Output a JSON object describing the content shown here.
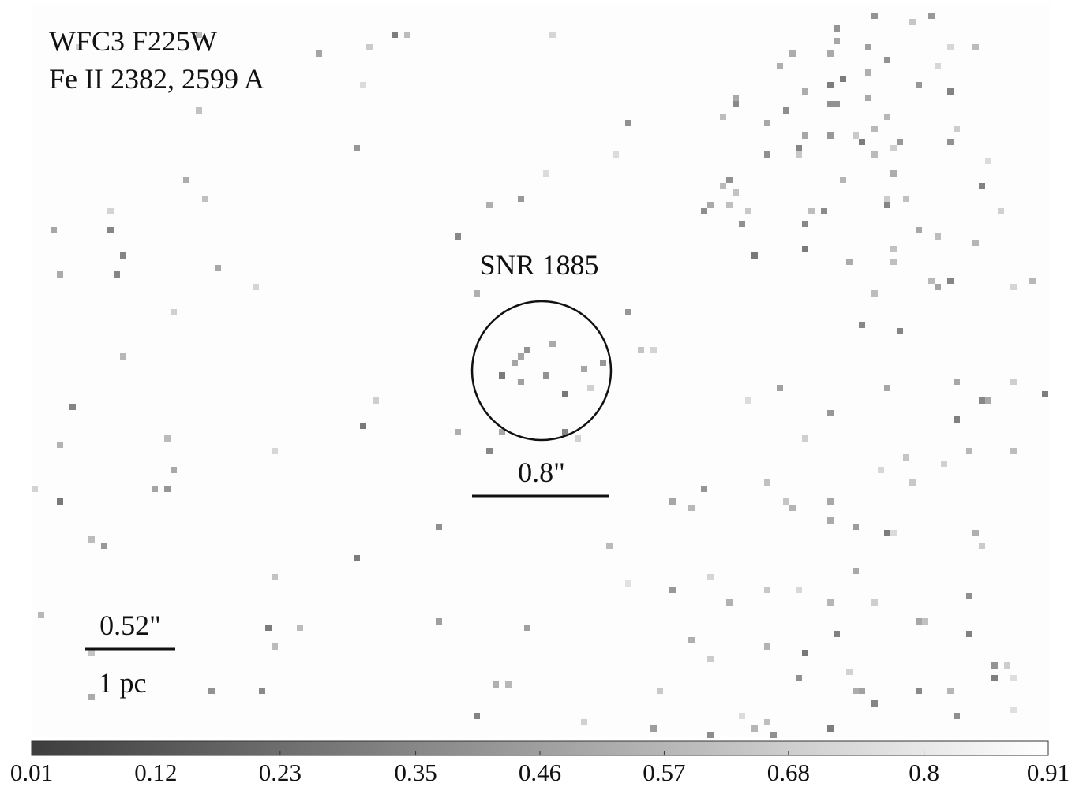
{
  "labels": {
    "filter": "WFC3 F225W",
    "lines": "Fe II 2382, 2599 A",
    "target": "SNR 1885",
    "circle_scale": "0.8\"",
    "scale_arcsec": "0.52\"",
    "scale_pc": "1 pc"
  },
  "colorbar": {
    "lim": [
      0.01,
      0.91
    ],
    "ticks": [
      0.01,
      0.12,
      0.23,
      0.35,
      0.46,
      0.57,
      0.68,
      0.8,
      0.91
    ]
  }
}
